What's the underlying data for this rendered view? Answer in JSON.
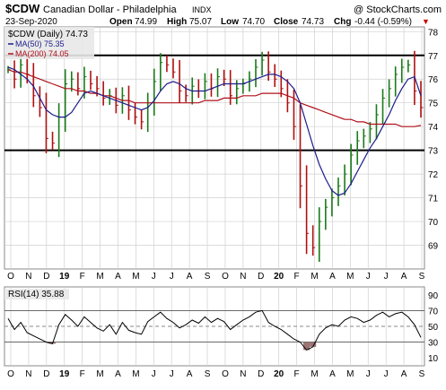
{
  "header": {
    "symbol": "$CDW",
    "name": "Canadian Dollar - Philadelphia",
    "exchange": "INDX",
    "watermark": "@ StockCharts.com",
    "date": "23-Sep-2020",
    "open_label": "Open",
    "open": "74.99",
    "high_label": "High",
    "high": "75.07",
    "low_label": "Low",
    "low": "74.70",
    "close_label": "Close",
    "close": "74.73",
    "chg_label": "Chg",
    "chg": "-0.44 (-0.59%)",
    "chg_arrow": "▼"
  },
  "legend": {
    "main": "$CDW (Daily) 74.73",
    "ma50": "MA(50) 75.35",
    "ma200": "MA(200) 74.05",
    "rsi": "RSI(14) 35.88"
  },
  "colors": {
    "price_bar": "#1a7a1a",
    "price_bar_down": "#b01010",
    "ma50": "#1c1c8c",
    "ma200": "#b0101a",
    "rsi": "#000000",
    "rsi_fill": "#8a5a5a",
    "grid": "#d0d0d0",
    "frame": "#8a8a8a",
    "legend_bg": "#e8e8e8"
  },
  "chart_data": [
    {
      "type": "ohlc",
      "title": "$CDW (Daily) 74.73",
      "x_ticks": [
        "O",
        "N",
        "D",
        "19",
        "F",
        "M",
        "A",
        "M",
        "J",
        "J",
        "A",
        "S",
        "O",
        "N",
        "D",
        "20",
        "F",
        "M",
        "A",
        "M",
        "J",
        "J",
        "A",
        "S"
      ],
      "ylim": [
        68.0,
        78.2
      ],
      "y_ticks": [
        69,
        70,
        71,
        72,
        73,
        74,
        75,
        76,
        77,
        78
      ],
      "horizontal_lines": [
        77.0,
        73.0
      ],
      "grid": true,
      "series": [
        {
          "name": "$CDW (Daily)",
          "kind": "price",
          "values": [
            76.4,
            76.0,
            76.6,
            76.2,
            75.3,
            74.8,
            73.5,
            73.3,
            74.4,
            75.8,
            76.0,
            75.6,
            76.1,
            75.8,
            75.6,
            75.2,
            75.3,
            74.9,
            75.3,
            74.7,
            74.4,
            74.2,
            75.0,
            75.9,
            76.7,
            76.6,
            76.3,
            75.5,
            75.3,
            75.7,
            75.5,
            75.9,
            75.6,
            76.1,
            76.0,
            75.3,
            75.6,
            75.8,
            76.0,
            76.5,
            76.8,
            76.3,
            76.0,
            75.6,
            75.0,
            74.0,
            71.5,
            69.5,
            68.9,
            70.0,
            70.6,
            71.0,
            71.5,
            72.0,
            72.8,
            73.4,
            73.6,
            73.9,
            74.5,
            75.2,
            75.6,
            76.2,
            76.5,
            76.6,
            75.5,
            74.8
          ]
        },
        {
          "name": "MA(50)",
          "kind": "line",
          "color_key": "ma50",
          "values": [
            76.5,
            76.4,
            76.2,
            76.0,
            75.7,
            75.2,
            74.7,
            74.5,
            74.4,
            74.4,
            74.6,
            75.0,
            75.4,
            75.5,
            75.4,
            75.3,
            75.2,
            75.1,
            75.0,
            74.9,
            74.8,
            74.7,
            74.8,
            75.1,
            75.5,
            75.8,
            75.9,
            75.8,
            75.6,
            75.5,
            75.5,
            75.5,
            75.6,
            75.7,
            75.8,
            75.8,
            75.8,
            75.8,
            75.9,
            76.0,
            76.1,
            76.2,
            76.2,
            76.1,
            75.9,
            75.6,
            75.0,
            74.1,
            73.2,
            72.4,
            71.8,
            71.3,
            71.1,
            71.2,
            71.6,
            72.1,
            72.6,
            73.1,
            73.5,
            74.0,
            74.5,
            75.1,
            75.6,
            76.0,
            76.1,
            75.3
          ]
        },
        {
          "name": "MA(200)",
          "kind": "line",
          "color_key": "ma200",
          "values": [
            76.4,
            76.3,
            76.3,
            76.2,
            76.1,
            76.0,
            75.9,
            75.8,
            75.7,
            75.6,
            75.6,
            75.5,
            75.5,
            75.4,
            75.4,
            75.3,
            75.3,
            75.2,
            75.1,
            75.1,
            75.0,
            75.0,
            75.0,
            75.0,
            75.0,
            75.0,
            75.0,
            75.0,
            75.0,
            75.0,
            75.0,
            75.1,
            75.1,
            75.1,
            75.2,
            75.2,
            75.2,
            75.3,
            75.3,
            75.3,
            75.4,
            75.4,
            75.4,
            75.4,
            75.3,
            75.2,
            75.0,
            74.9,
            74.8,
            74.7,
            74.6,
            74.5,
            74.4,
            74.3,
            74.3,
            74.2,
            74.2,
            74.1,
            74.1,
            74.1,
            74.1,
            74.1,
            74.0,
            74.0,
            74.0,
            74.05
          ]
        }
      ]
    },
    {
      "type": "line",
      "title": "RSI(14) 35.88",
      "x_ticks": [
        "O",
        "N",
        "D",
        "19",
        "F",
        "M",
        "A",
        "M",
        "J",
        "J",
        "A",
        "S",
        "O",
        "N",
        "D",
        "20",
        "F",
        "M",
        "A",
        "M",
        "J",
        "J",
        "A",
        "S"
      ],
      "ylim": [
        0,
        100
      ],
      "y_ticks": [
        10,
        30,
        50,
        70,
        90
      ],
      "horizontal_lines": [
        70,
        50,
        30
      ],
      "grid": true,
      "series": [
        {
          "name": "RSI(14)",
          "values": [
            60,
            46,
            55,
            42,
            38,
            34,
            30,
            28,
            52,
            65,
            58,
            50,
            62,
            55,
            48,
            44,
            52,
            40,
            55,
            45,
            42,
            40,
            56,
            62,
            68,
            60,
            55,
            48,
            52,
            58,
            54,
            62,
            55,
            60,
            56,
            46,
            52,
            58,
            62,
            68,
            70,
            55,
            50,
            46,
            40,
            34,
            30,
            20,
            24,
            40,
            48,
            52,
            50,
            58,
            62,
            60,
            55,
            58,
            64,
            68,
            62,
            66,
            68,
            62,
            52,
            36
          ]
        }
      ]
    }
  ]
}
